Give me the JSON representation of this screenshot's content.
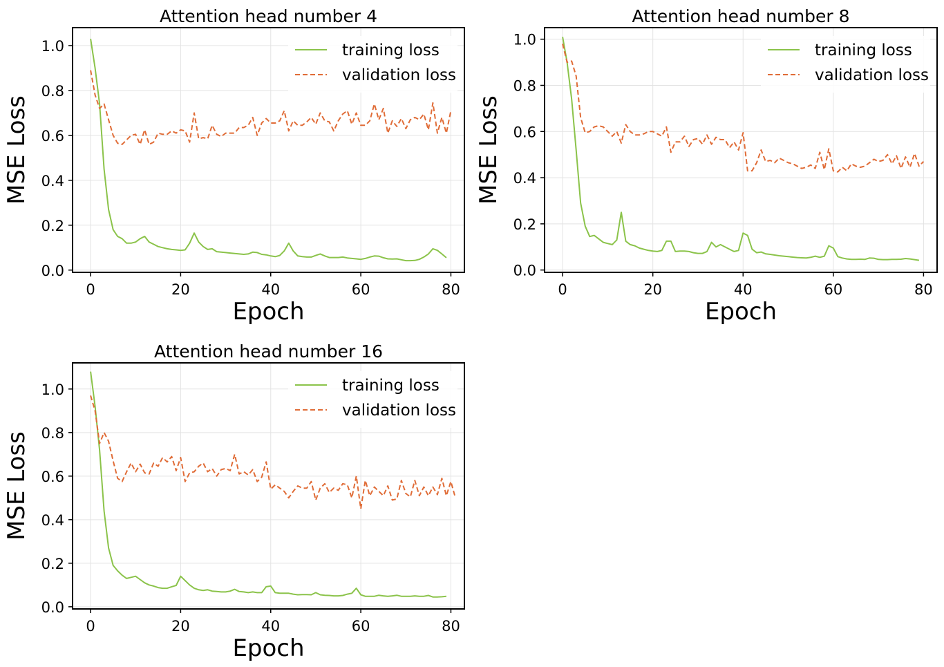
{
  "colors": {
    "training": "#8bc34a",
    "validation": "#e06c37"
  },
  "chart_data": [
    {
      "type": "line",
      "title": "Attention head number 4",
      "xlabel": "Epoch",
      "ylabel": "MSE Loss",
      "xlim": [
        -4,
        83
      ],
      "ylim": [
        -0.01,
        1.08
      ],
      "xticks": [
        0,
        20,
        40,
        60,
        80
      ],
      "yticks": [
        0.0,
        0.2,
        0.4,
        0.6,
        0.8,
        1.0
      ],
      "xtick_labels": [
        "0",
        "20",
        "40",
        "60",
        "80"
      ],
      "ytick_labels": [
        "0.0",
        "0.2",
        "0.4",
        "0.6",
        "0.8",
        "1.0"
      ],
      "grid": true,
      "legend": "top-right",
      "series": [
        {
          "name": "training loss",
          "style": "solid",
          "values": [
            1.03,
            0.9,
            0.74,
            0.45,
            0.27,
            0.18,
            0.15,
            0.14,
            0.12,
            0.12,
            0.125,
            0.14,
            0.15,
            0.125,
            0.115,
            0.105,
            0.1,
            0.095,
            0.092,
            0.09,
            0.088,
            0.09,
            0.12,
            0.165,
            0.125,
            0.105,
            0.092,
            0.095,
            0.082,
            0.08,
            0.078,
            0.076,
            0.074,
            0.072,
            0.07,
            0.072,
            0.08,
            0.078,
            0.07,
            0.068,
            0.063,
            0.06,
            0.065,
            0.085,
            0.12,
            0.085,
            0.063,
            0.06,
            0.058,
            0.058,
            0.065,
            0.072,
            0.063,
            0.056,
            0.056,
            0.056,
            0.058,
            0.054,
            0.052,
            0.05,
            0.048,
            0.052,
            0.058,
            0.063,
            0.062,
            0.055,
            0.05,
            0.049,
            0.05,
            0.046,
            0.042,
            0.042,
            0.043,
            0.048,
            0.058,
            0.072,
            0.095,
            0.088,
            0.072,
            0.055
          ]
        },
        {
          "name": "validation loss",
          "style": "dashed",
          "values": [
            0.89,
            0.78,
            0.72,
            0.74,
            0.67,
            0.6,
            0.565,
            0.56,
            0.58,
            0.6,
            0.605,
            0.56,
            0.625,
            0.56,
            0.57,
            0.61,
            0.605,
            0.605,
            0.62,
            0.61,
            0.625,
            0.62,
            0.57,
            0.7,
            0.585,
            0.59,
            0.585,
            0.645,
            0.605,
            0.595,
            0.61,
            0.61,
            0.61,
            0.635,
            0.635,
            0.645,
            0.68,
            0.6,
            0.655,
            0.675,
            0.655,
            0.655,
            0.665,
            0.71,
            0.62,
            0.665,
            0.645,
            0.645,
            0.66,
            0.68,
            0.65,
            0.7,
            0.665,
            0.66,
            0.62,
            0.665,
            0.695,
            0.71,
            0.65,
            0.7,
            0.645,
            0.645,
            0.665,
            0.74,
            0.67,
            0.72,
            0.61,
            0.665,
            0.64,
            0.675,
            0.63,
            0.67,
            0.68,
            0.67,
            0.695,
            0.625,
            0.745,
            0.61,
            0.68,
            0.61,
            0.71
          ]
        }
      ]
    },
    {
      "type": "line",
      "title": "Attention head number 8",
      "xlabel": "Epoch",
      "ylabel": "MSE Loss",
      "xlim": [
        -4,
        83
      ],
      "ylim": [
        -0.01,
        1.05
      ],
      "xticks": [
        0,
        20,
        40,
        60,
        80
      ],
      "yticks": [
        0.0,
        0.2,
        0.4,
        0.6,
        0.8,
        1.0
      ],
      "xtick_labels": [
        "0",
        "20",
        "40",
        "60",
        "80"
      ],
      "ytick_labels": [
        "0.0",
        "0.2",
        "0.4",
        "0.6",
        "0.8",
        "1.0"
      ],
      "grid": true,
      "legend": "top-right",
      "series": [
        {
          "name": "training loss",
          "style": "solid",
          "values": [
            1.01,
            0.9,
            0.74,
            0.52,
            0.29,
            0.19,
            0.145,
            0.15,
            0.135,
            0.12,
            0.115,
            0.11,
            0.13,
            0.25,
            0.125,
            0.11,
            0.105,
            0.095,
            0.09,
            0.085,
            0.082,
            0.08,
            0.085,
            0.125,
            0.125,
            0.08,
            0.082,
            0.082,
            0.08,
            0.075,
            0.072,
            0.072,
            0.08,
            0.12,
            0.1,
            0.11,
            0.1,
            0.09,
            0.08,
            0.085,
            0.16,
            0.15,
            0.09,
            0.075,
            0.078,
            0.07,
            0.068,
            0.065,
            0.062,
            0.06,
            0.058,
            0.056,
            0.054,
            0.053,
            0.052,
            0.055,
            0.06,
            0.055,
            0.06,
            0.105,
            0.095,
            0.058,
            0.052,
            0.048,
            0.046,
            0.046,
            0.047,
            0.046,
            0.052,
            0.051,
            0.046,
            0.045,
            0.045,
            0.046,
            0.046,
            0.047,
            0.05,
            0.048,
            0.045,
            0.042
          ]
        },
        {
          "name": "validation loss",
          "style": "dashed",
          "values": [
            0.98,
            0.9,
            0.905,
            0.84,
            0.66,
            0.595,
            0.6,
            0.62,
            0.625,
            0.62,
            0.6,
            0.58,
            0.6,
            0.55,
            0.63,
            0.6,
            0.585,
            0.585,
            0.59,
            0.6,
            0.6,
            0.59,
            0.58,
            0.62,
            0.51,
            0.555,
            0.555,
            0.58,
            0.535,
            0.565,
            0.57,
            0.545,
            0.585,
            0.545,
            0.575,
            0.565,
            0.565,
            0.53,
            0.555,
            0.52,
            0.595,
            0.43,
            0.43,
            0.465,
            0.52,
            0.47,
            0.475,
            0.465,
            0.485,
            0.475,
            0.465,
            0.46,
            0.45,
            0.44,
            0.445,
            0.455,
            0.44,
            0.51,
            0.435,
            0.525,
            0.43,
            0.425,
            0.445,
            0.43,
            0.46,
            0.45,
            0.445,
            0.45,
            0.465,
            0.48,
            0.47,
            0.475,
            0.5,
            0.46,
            0.495,
            0.44,
            0.49,
            0.445,
            0.505,
            0.45,
            0.47
          ]
        }
      ]
    },
    {
      "type": "line",
      "title": "Attention head number 16",
      "xlabel": "Epoch",
      "ylabel": "MSE Loss",
      "xlim": [
        -4,
        83
      ],
      "ylim": [
        -0.01,
        1.12
      ],
      "xticks": [
        0,
        20,
        40,
        60,
        80
      ],
      "yticks": [
        0.0,
        0.2,
        0.4,
        0.6,
        0.8,
        1.0
      ],
      "xtick_labels": [
        "0",
        "20",
        "40",
        "60",
        "80"
      ],
      "ytick_labels": [
        "0.0",
        "0.2",
        "0.4",
        "0.6",
        "0.8",
        "1.0"
      ],
      "grid": true,
      "legend": "top-right",
      "series": [
        {
          "name": "training loss",
          "style": "solid",
          "values": [
            1.08,
            0.92,
            0.72,
            0.44,
            0.27,
            0.19,
            0.165,
            0.145,
            0.13,
            0.135,
            0.14,
            0.125,
            0.11,
            0.1,
            0.095,
            0.088,
            0.085,
            0.085,
            0.092,
            0.098,
            0.14,
            0.12,
            0.1,
            0.085,
            0.078,
            0.075,
            0.078,
            0.072,
            0.07,
            0.068,
            0.068,
            0.072,
            0.08,
            0.07,
            0.068,
            0.065,
            0.068,
            0.065,
            0.065,
            0.092,
            0.095,
            0.065,
            0.062,
            0.062,
            0.062,
            0.058,
            0.055,
            0.056,
            0.056,
            0.055,
            0.065,
            0.055,
            0.053,
            0.052,
            0.05,
            0.05,
            0.052,
            0.058,
            0.062,
            0.085,
            0.055,
            0.048,
            0.048,
            0.048,
            0.053,
            0.05,
            0.048,
            0.05,
            0.053,
            0.048,
            0.048,
            0.048,
            0.05,
            0.048,
            0.048,
            0.052,
            0.045,
            0.045,
            0.046,
            0.048
          ]
        },
        {
          "name": "validation loss",
          "style": "dashed",
          "values": [
            0.97,
            0.9,
            0.75,
            0.8,
            0.76,
            0.67,
            0.59,
            0.575,
            0.62,
            0.66,
            0.62,
            0.655,
            0.615,
            0.61,
            0.66,
            0.645,
            0.685,
            0.665,
            0.69,
            0.625,
            0.685,
            0.575,
            0.615,
            0.62,
            0.645,
            0.66,
            0.62,
            0.635,
            0.6,
            0.63,
            0.635,
            0.625,
            0.7,
            0.61,
            0.62,
            0.605,
            0.63,
            0.575,
            0.595,
            0.665,
            0.54,
            0.56,
            0.545,
            0.53,
            0.5,
            0.53,
            0.555,
            0.545,
            0.545,
            0.575,
            0.49,
            0.545,
            0.565,
            0.525,
            0.545,
            0.535,
            0.565,
            0.56,
            0.5,
            0.6,
            0.45,
            0.58,
            0.51,
            0.55,
            0.53,
            0.51,
            0.555,
            0.49,
            0.495,
            0.58,
            0.52,
            0.505,
            0.58,
            0.51,
            0.55,
            0.51,
            0.55,
            0.515,
            0.59,
            0.51,
            0.575,
            0.5
          ]
        }
      ]
    }
  ]
}
